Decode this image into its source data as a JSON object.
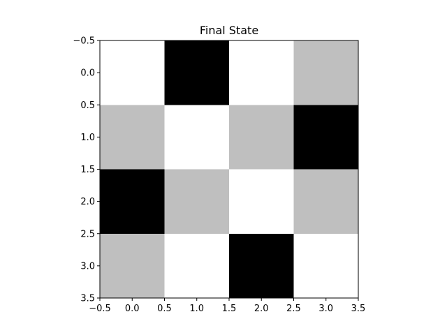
{
  "chart_data": {
    "type": "heatmap",
    "title": "Final State",
    "xlabel": "",
    "ylabel": "",
    "xlim": [
      -0.5,
      3.5
    ],
    "ylim": [
      3.5,
      -0.5
    ],
    "x_ticks": [
      -0.5,
      0.0,
      0.5,
      1.0,
      1.5,
      2.0,
      2.5,
      3.0,
      3.5
    ],
    "y_ticks": [
      -0.5,
      0.0,
      0.5,
      1.0,
      1.5,
      2.0,
      2.5,
      3.0,
      3.5
    ],
    "x_tick_labels": [
      "−0.5",
      "0.0",
      "0.5",
      "1.0",
      "1.5",
      "2.0",
      "2.5",
      "3.0",
      "3.5"
    ],
    "y_tick_labels": [
      "−0.5",
      "0.0",
      "0.5",
      "1.0",
      "1.5",
      "2.0",
      "2.5",
      "3.0",
      "3.5"
    ],
    "grid": false,
    "colormap": "gray",
    "colors": {
      "0": "#000000",
      "1": "#bfbfbf",
      "2": "#ffffff"
    },
    "matrix": [
      [
        2,
        0,
        2,
        1
      ],
      [
        1,
        2,
        1,
        0
      ],
      [
        0,
        1,
        2,
        1
      ],
      [
        1,
        2,
        0,
        2
      ]
    ]
  }
}
